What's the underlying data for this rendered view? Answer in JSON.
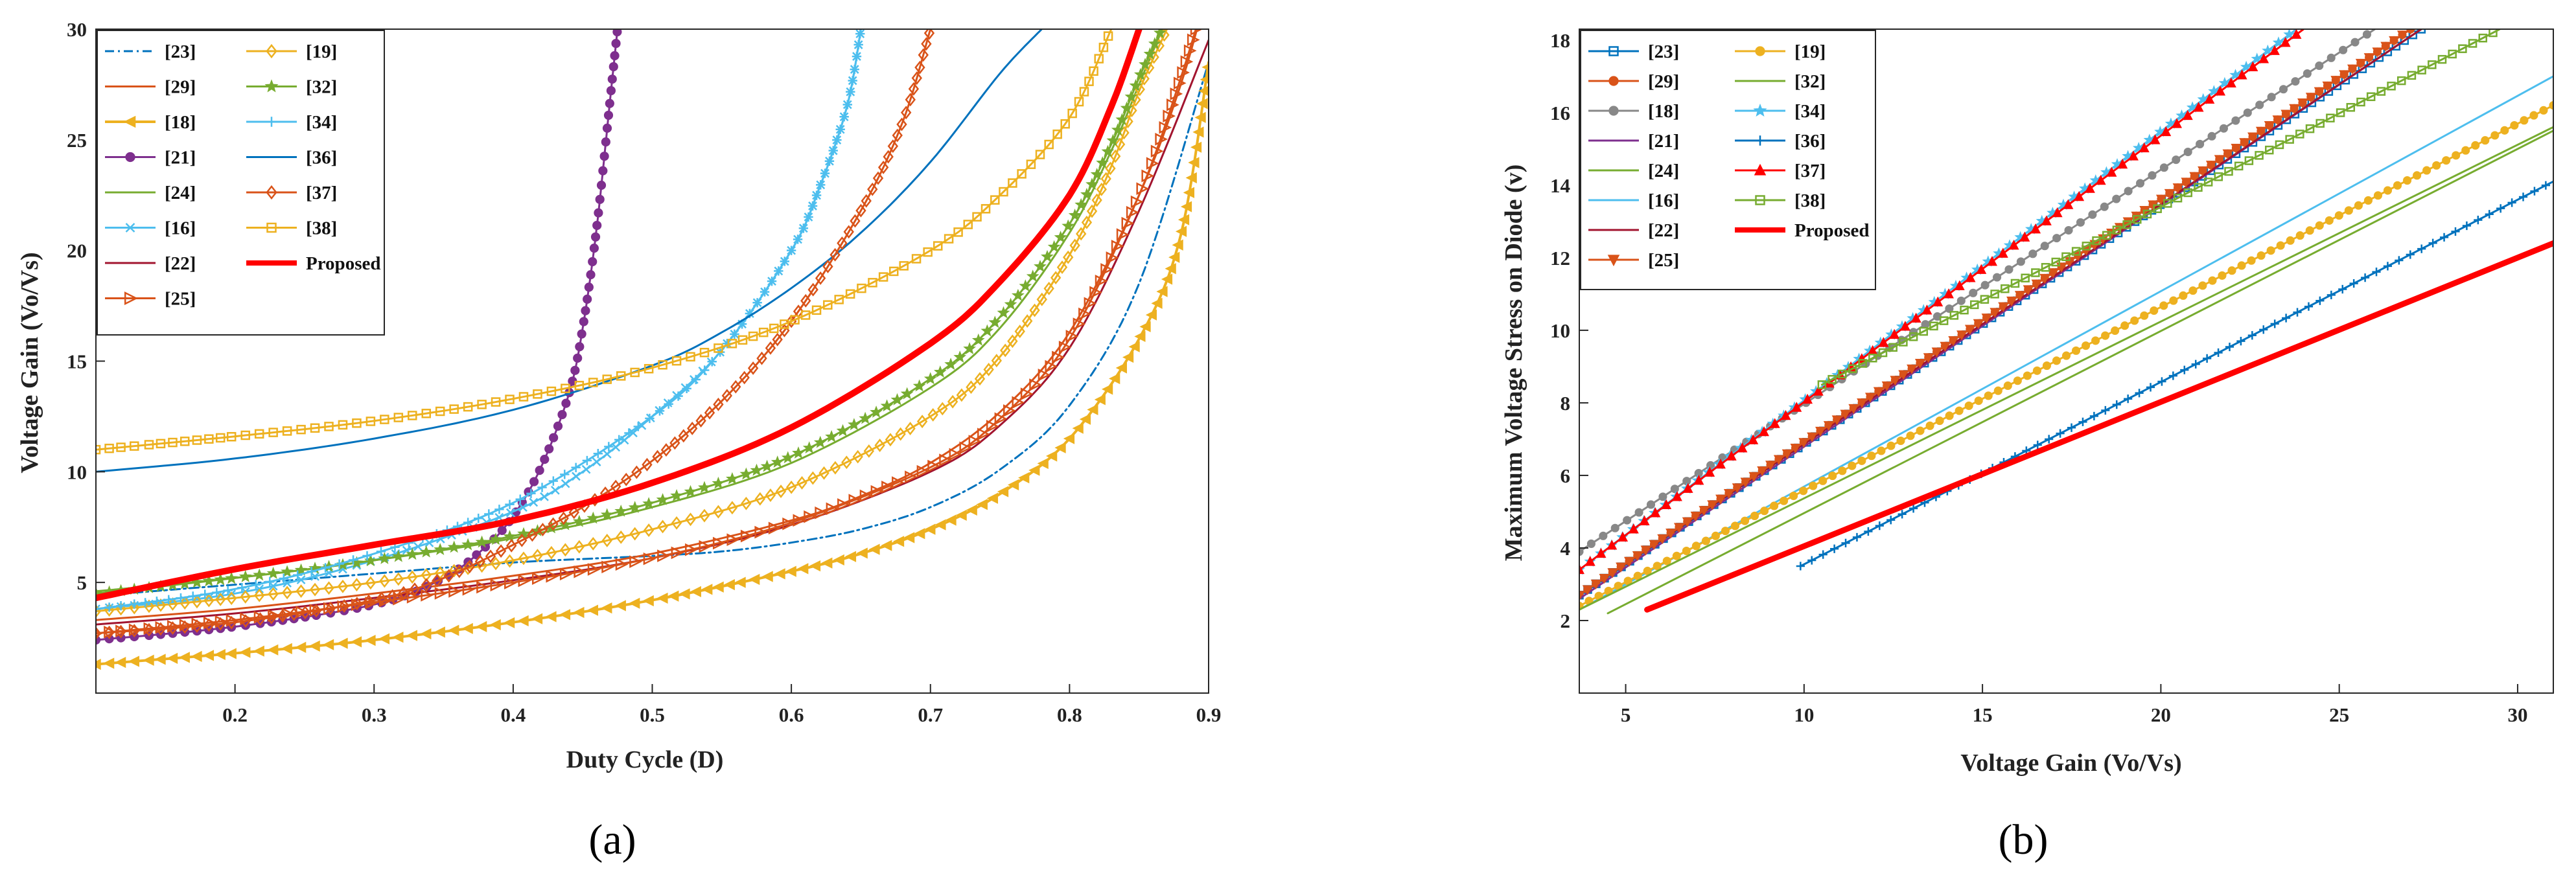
{
  "panels": [
    {
      "id": "a",
      "caption": "(a)",
      "xlabel": "Duty Cycle (D)",
      "ylabel": "Voltage Gain  (Vo/Vs)",
      "xlim": [
        0.1,
        0.9
      ],
      "ylim": [
        0,
        30
      ],
      "xticks": [
        0.2,
        0.3,
        0.4,
        0.5,
        0.6,
        0.7,
        0.8,
        0.9
      ],
      "xticklabels": [
        "0.2",
        "0.3",
        "0.4",
        "0.5",
        "0.6",
        "0.7",
        "0.8",
        "0.9"
      ],
      "yticks": [
        5,
        10,
        15,
        20,
        25,
        30
      ],
      "yticklabels": [
        "5",
        "10",
        "15",
        "20",
        "25",
        "30"
      ],
      "legend_position": "top-left",
      "legend_columns": [
        [
          "[23]",
          "[29]",
          "[18]",
          "[21]",
          "[24]",
          "[16]",
          "[22]",
          "[25]"
        ],
        [
          "[19]",
          "[32]",
          "[34]",
          "[36]",
          "[37]",
          "[38]",
          "Proposed"
        ]
      ]
    },
    {
      "id": "b",
      "caption": "(b)",
      "xlabel": "Voltage Gain  (Vo/Vs)",
      "ylabel": "Maximum Voltage Stress on Diode (v)",
      "xlim": [
        3.7,
        31
      ],
      "ylim": [
        0,
        18.3
      ],
      "xticks": [
        5,
        10,
        15,
        20,
        25,
        30
      ],
      "xticklabels": [
        "5",
        "10",
        "15",
        "20",
        "25",
        "30"
      ],
      "yticks": [
        2,
        4,
        6,
        8,
        10,
        12,
        14,
        16,
        18
      ],
      "yticklabels": [
        "2",
        "4",
        "6",
        "8",
        "10",
        "12",
        "14",
        "16",
        "18"
      ],
      "legend_position": "top-left",
      "legend_columns": [
        [
          "[23]",
          "[29]",
          "[18]",
          "[21]",
          "[24]",
          "[16]",
          "[22]",
          "[25]"
        ],
        [
          "[19]",
          "[32]",
          "[34]",
          "[36]",
          "[37]",
          "[38]",
          "Proposed"
        ]
      ]
    }
  ],
  "chart_data": [
    {
      "type": "line",
      "title": "(a)",
      "xlabel": "Duty Cycle (D)",
      "ylabel": "Voltage Gain  (Vo/Vs)",
      "xlim": [
        0.1,
        0.9
      ],
      "ylim": [
        0,
        30
      ],
      "grid": false,
      "legend_position": "top-left",
      "series": [
        {
          "name": "[23]",
          "color": "#0072BD",
          "marker": "none",
          "dash": "dashdot",
          "width": 3,
          "x": [
            0.1,
            0.2,
            0.3,
            0.4,
            0.5,
            0.55,
            0.6,
            0.65,
            0.7,
            0.75,
            0.8,
            0.85,
            0.9
          ],
          "y": [
            4.4,
            4.9,
            5.4,
            5.9,
            6.2,
            6.4,
            6.8,
            7.4,
            8.4,
            10.1,
            13.0,
            18.5,
            28.5
          ]
        },
        {
          "name": "[29]",
          "color": "#D95319",
          "marker": "none",
          "dash": "solid",
          "width": 3,
          "x": [
            0.1,
            0.2,
            0.3,
            0.4,
            0.5,
            0.6,
            0.65,
            0.7,
            0.75,
            0.8,
            0.85,
            0.88,
            0.9
          ],
          "y": [
            3.3,
            3.8,
            4.5,
            5.3,
            6.3,
            7.8,
            8.9,
            10.4,
            12.7,
            16.3,
            22.5,
            27.5,
            32
          ]
        },
        {
          "name": "[18]",
          "color": "#EDB120",
          "marker": "triangle-left",
          "dash": "solid",
          "width": 4,
          "x": [
            0.1,
            0.2,
            0.3,
            0.4,
            0.5,
            0.6,
            0.65,
            0.7,
            0.75,
            0.8,
            0.85,
            0.88,
            0.9
          ],
          "y": [
            1.3,
            1.8,
            2.4,
            3.2,
            4.2,
            5.5,
            6.3,
            7.4,
            9.0,
            11.5,
            16.0,
            20.7,
            28.5
          ]
        },
        {
          "name": "[21]",
          "color": "#7E2F8E",
          "marker": "circle",
          "dash": "solid",
          "width": 3,
          "x": [
            0.1,
            0.2,
            0.3,
            0.35,
            0.38,
            0.4,
            0.42,
            0.44,
            0.45,
            0.46,
            0.47,
            0.475
          ],
          "y": [
            2.4,
            3.0,
            4.0,
            5.2,
            6.6,
            8.0,
            10.2,
            13.5,
            16.5,
            21.0,
            27.0,
            30.0
          ]
        },
        {
          "name": "[24]",
          "color": "#77AC30",
          "marker": "none",
          "dash": "solid",
          "width": 3,
          "x": [
            0.1,
            0.2,
            0.3,
            0.4,
            0.5,
            0.6,
            0.7,
            0.75,
            0.8,
            0.83,
            0.85,
            0.87
          ],
          "y": [
            4.6,
            5.2,
            6.0,
            7.0,
            8.4,
            10.4,
            13.8,
            16.5,
            20.8,
            24.5,
            27.5,
            30.5
          ]
        },
        {
          "name": "[16]",
          "color": "#4DBEEE",
          "marker": "x",
          "dash": "solid",
          "width": 3,
          "x": [
            0.1,
            0.2,
            0.3,
            0.4,
            0.45,
            0.5,
            0.55,
            0.6,
            0.62,
            0.64,
            0.65
          ],
          "y": [
            3.8,
            4.5,
            6.0,
            8.2,
            10.0,
            12.5,
            15.5,
            20.0,
            22.8,
            26.5,
            30.0
          ]
        },
        {
          "name": "[22]",
          "color": "#A2142F",
          "marker": "none",
          "dash": "solid",
          "width": 3,
          "x": [
            0.1,
            0.2,
            0.3,
            0.4,
            0.5,
            0.6,
            0.7,
            0.75,
            0.8,
            0.85,
            0.9
          ],
          "y": [
            3.1,
            3.6,
            4.3,
            5.1,
            6.1,
            7.6,
            10.0,
            12.1,
            15.6,
            21.8,
            29.5
          ]
        },
        {
          "name": "[25]",
          "color": "#D95319",
          "marker": "triangle-right",
          "dash": "solid",
          "width": 3,
          "x": [
            0.1,
            0.2,
            0.3,
            0.4,
            0.5,
            0.6,
            0.7,
            0.75,
            0.8,
            0.85,
            0.88,
            0.9
          ],
          "y": [
            2.7,
            3.3,
            4.1,
            5.0,
            6.1,
            7.7,
            10.2,
            12.4,
            16.0,
            22.5,
            27.8,
            32
          ]
        },
        {
          "name": "[19]",
          "color": "#EDB120",
          "marker": "diamond",
          "dash": "solid",
          "width": 3,
          "x": [
            0.1,
            0.2,
            0.3,
            0.4,
            0.5,
            0.6,
            0.7,
            0.75,
            0.8,
            0.83,
            0.85,
            0.87
          ],
          "y": [
            3.7,
            4.3,
            5.0,
            6.0,
            7.4,
            9.3,
            12.5,
            15.2,
            19.8,
            23.8,
            27.2,
            30.0
          ]
        },
        {
          "name": "[32]",
          "color": "#77AC30",
          "marker": "star",
          "dash": "solid",
          "width": 3,
          "x": [
            0.1,
            0.2,
            0.3,
            0.4,
            0.5,
            0.6,
            0.7,
            0.75,
            0.8,
            0.83,
            0.85,
            0.87
          ],
          "y": [
            4.5,
            5.2,
            6.0,
            7.1,
            8.6,
            10.7,
            14.2,
            17.0,
            21.2,
            24.8,
            27.8,
            30.5
          ]
        },
        {
          "name": "[34]",
          "color": "#4DBEEE",
          "marker": "plus",
          "dash": "solid",
          "width": 3,
          "x": [
            0.1,
            0.2,
            0.3,
            0.4,
            0.5,
            0.55,
            0.6,
            0.62,
            0.64,
            0.65
          ],
          "y": [
            3.8,
            4.7,
            6.3,
            8.6,
            12.5,
            15.5,
            20.0,
            22.8,
            26.5,
            30.0
          ]
        },
        {
          "name": "[36]",
          "color": "#0072BD",
          "marker": "none",
          "dash": "solid",
          "width": 3,
          "x": [
            0.1,
            0.2,
            0.3,
            0.4,
            0.5,
            0.55,
            0.6,
            0.65,
            0.7,
            0.75,
            0.78
          ],
          "y": [
            10.0,
            10.6,
            11.5,
            12.8,
            14.8,
            16.3,
            18.3,
            20.8,
            24.0,
            28.0,
            30.0
          ]
        },
        {
          "name": "[37]",
          "color": "#D95319",
          "marker": "diamond",
          "dash": "solid",
          "width": 3,
          "x": [
            0.1,
            0.2,
            0.3,
            0.35,
            0.4,
            0.45,
            0.5,
            0.55,
            0.6,
            0.65,
            0.68,
            0.7
          ],
          "y": [
            2.7,
            3.2,
            4.2,
            5.2,
            6.7,
            8.4,
            10.5,
            13.2,
            16.8,
            21.8,
            25.8,
            30.0
          ]
        },
        {
          "name": "[38]",
          "color": "#EDB120",
          "marker": "square",
          "dash": "solid",
          "width": 3,
          "x": [
            0.1,
            0.2,
            0.3,
            0.4,
            0.5,
            0.6,
            0.7,
            0.75,
            0.8,
            0.83
          ],
          "y": [
            11.0,
            11.6,
            12.3,
            13.3,
            14.7,
            16.8,
            20.0,
            22.5,
            26.0,
            30.0
          ]
        },
        {
          "name": "Proposed",
          "color": "#FF0000",
          "marker": "none",
          "dash": "solid",
          "width": 10,
          "x": [
            0.1,
            0.2,
            0.3,
            0.4,
            0.5,
            0.6,
            0.7,
            0.75,
            0.8,
            0.83,
            0.85
          ],
          "y": [
            4.3,
            5.6,
            6.7,
            7.8,
            9.5,
            12.0,
            15.8,
            18.6,
            22.5,
            26.5,
            30.0
          ]
        }
      ]
    },
    {
      "type": "line",
      "title": "(b)",
      "xlabel": "Voltage Gain  (Vo/Vs)",
      "ylabel": "Maximum Voltage Stress on Diode (v)",
      "xlim": [
        3.7,
        31
      ],
      "ylim": [
        0,
        18.3
      ],
      "grid": false,
      "legend_position": "top-left",
      "series": [
        {
          "name": "[23]",
          "color": "#0072BD",
          "marker": "square",
          "dash": "solid",
          "width": 3,
          "x": [
            3.7,
            27.3
          ],
          "y": [
            2.7,
            18.3
          ]
        },
        {
          "name": "[29]",
          "color": "#D95319",
          "marker": "circle",
          "dash": "solid",
          "width": 3,
          "x": [
            3.7,
            27.0
          ],
          "y": [
            2.7,
            18.3
          ]
        },
        {
          "name": "[18]",
          "color": "#888888",
          "marker": "circle",
          "dash": "solid",
          "width": 3,
          "x": [
            3.7,
            26.0
          ],
          "y": [
            3.9,
            18.3
          ]
        },
        {
          "name": "[21]",
          "color": "#7E2F8E",
          "marker": "none",
          "dash": "solid",
          "width": 3,
          "x": [
            3.7,
            27.3
          ],
          "y": [
            2.6,
            18.3
          ]
        },
        {
          "name": "[24]",
          "color": "#77AC30",
          "marker": "none",
          "dash": "solid",
          "width": 3,
          "x": [
            4.5,
            31.0
          ],
          "y": [
            2.2,
            15.5
          ]
        },
        {
          "name": "[16]",
          "color": "#4DBEEE",
          "marker": "none",
          "dash": "solid",
          "width": 3,
          "x": [
            3.7,
            31.0
          ],
          "y": [
            2.3,
            17.0
          ]
        },
        {
          "name": "[22]",
          "color": "#A2142F",
          "marker": "none",
          "dash": "solid",
          "width": 3,
          "x": [
            3.7,
            27.3
          ],
          "y": [
            2.7,
            18.3
          ]
        },
        {
          "name": "[25]",
          "color": "#D95319",
          "marker": "triangle-down",
          "dash": "solid",
          "width": 3,
          "x": [
            3.7,
            27.0
          ],
          "y": [
            2.7,
            18.3
          ]
        },
        {
          "name": "[19]",
          "color": "#EDB120",
          "marker": "circle",
          "dash": "solid",
          "width": 3,
          "x": [
            3.7,
            31.0
          ],
          "y": [
            2.4,
            16.2
          ]
        },
        {
          "name": "[32]",
          "color": "#77AC30",
          "marker": "none",
          "dash": "solid",
          "width": 3,
          "x": [
            3.7,
            31.0
          ],
          "y": [
            2.3,
            15.6
          ]
        },
        {
          "name": "[34]",
          "color": "#4DBEEE",
          "marker": "star",
          "dash": "solid",
          "width": 3,
          "x": [
            3.7,
            23.8
          ],
          "y": [
            3.4,
            18.3
          ]
        },
        {
          "name": "[36]",
          "color": "#0072BD",
          "marker": "plus",
          "dash": "solid",
          "width": 3,
          "x": [
            9.9,
            31.0
          ],
          "y": [
            3.5,
            14.1
          ]
        },
        {
          "name": "[37]",
          "color": "#FF0000",
          "marker": "triangle-up",
          "dash": "solid",
          "width": 3,
          "x": [
            3.7,
            24.0
          ],
          "y": [
            3.4,
            18.3
          ]
        },
        {
          "name": "[38]",
          "color": "#77AC30",
          "marker": "square",
          "dash": "solid",
          "width": 3,
          "x": [
            10.5,
            29.5
          ],
          "y": [
            8.5,
            18.3
          ]
        },
        {
          "name": "Proposed",
          "color": "#FF0000",
          "marker": "none",
          "dash": "solid",
          "width": 9,
          "x": [
            5.6,
            31.0
          ],
          "y": [
            2.3,
            12.4
          ]
        }
      ]
    }
  ]
}
